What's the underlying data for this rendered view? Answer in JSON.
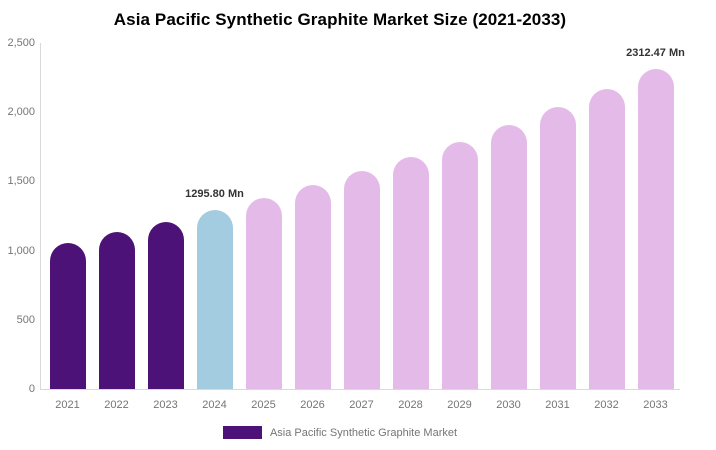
{
  "title": "Asia Pacific Synthetic Graphite Market Size (2021-2033)",
  "legend": {
    "label": "Asia Pacific Synthetic Graphite Market",
    "swatch_color": "#4c1277"
  },
  "chart_data": {
    "type": "bar",
    "title": "Asia Pacific Synthetic Graphite Market Size (2021-2033)",
    "xlabel": "",
    "ylabel": "",
    "categories": [
      "2021",
      "2022",
      "2023",
      "2024",
      "2025",
      "2026",
      "2027",
      "2028",
      "2029",
      "2030",
      "2031",
      "2032",
      "2033"
    ],
    "values": [
      1055,
      1135,
      1210,
      1295.8,
      1382,
      1474,
      1572,
      1677,
      1788,
      1907,
      2034,
      2170,
      2312.47
    ],
    "unit": "Mn",
    "series_name": "Asia Pacific Synthetic Graphite Market",
    "ylim": [
      0,
      2500
    ],
    "yticks": [
      0,
      500,
      1000,
      1500,
      2000,
      2500
    ],
    "ytick_labels": [
      "0",
      "500",
      "1,000",
      "1,500",
      "2,000",
      "2,500"
    ],
    "grid": false,
    "legend_position": "bottom",
    "bar_segments": [
      "historical",
      "historical",
      "historical",
      "current",
      "forecast",
      "forecast",
      "forecast",
      "forecast",
      "forecast",
      "forecast",
      "forecast",
      "forecast",
      "forecast"
    ],
    "segment_colors": {
      "historical": "#4c1277",
      "current": "#a4cce1",
      "forecast": "#e4bae8"
    },
    "annotations": [
      {
        "category": "2024",
        "text": "1295.80 Mn"
      },
      {
        "category": "2033",
        "text": "2312.47 Mn"
      }
    ]
  }
}
